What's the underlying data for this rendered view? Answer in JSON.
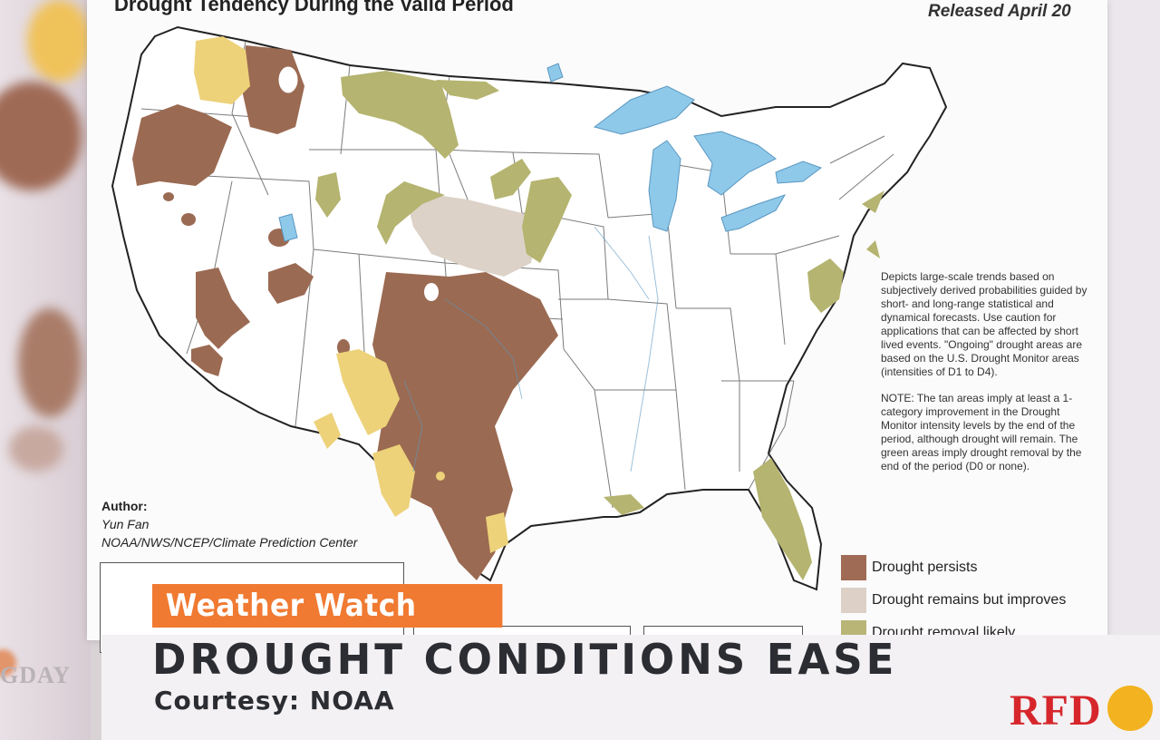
{
  "map": {
    "title": "Drought Tendency During the Valid Period",
    "released": "Released April 20",
    "author_label": "Author:",
    "author_name": "Yun Fan",
    "author_org": "NOAA/NWS/NCEP/Climate Prediction Center",
    "description": "Depicts large-scale trends based on subjectively derived probabilities guided by short- and long-range statistical and dynamical forecasts. Use caution for applications that can be affected by short lived events. \"Ongoing\" drought areas are based on the U.S. Drought Monitor areas (intensities of D1 to D4).",
    "note": "NOTE: The tan areas imply at least a 1-category improvement in the Drought Monitor intensity levels by the end of the period, although drought will remain. The green areas imply drought removal by the end of the period (D0 or none).",
    "legend": [
      {
        "label": "Drought persists",
        "color": "#a06b55"
      },
      {
        "label": "Drought remains but improves",
        "color": "#ddd0c6"
      },
      {
        "label": "Drought removal likely",
        "color": "#b9b577"
      }
    ],
    "colors": {
      "persists": "#9b6a52",
      "improves": "#ddd2c8",
      "removal": "#b5b470",
      "development": "#edd27a",
      "water": "#8ec9ea"
    }
  },
  "broadcast": {
    "segment": "Weather Watch",
    "headline": "DROUGHT CONDITIONS EASE",
    "courtesy": "Courtesy: NOAA",
    "station_logo": "RFD",
    "show_logo": "GDAY"
  }
}
